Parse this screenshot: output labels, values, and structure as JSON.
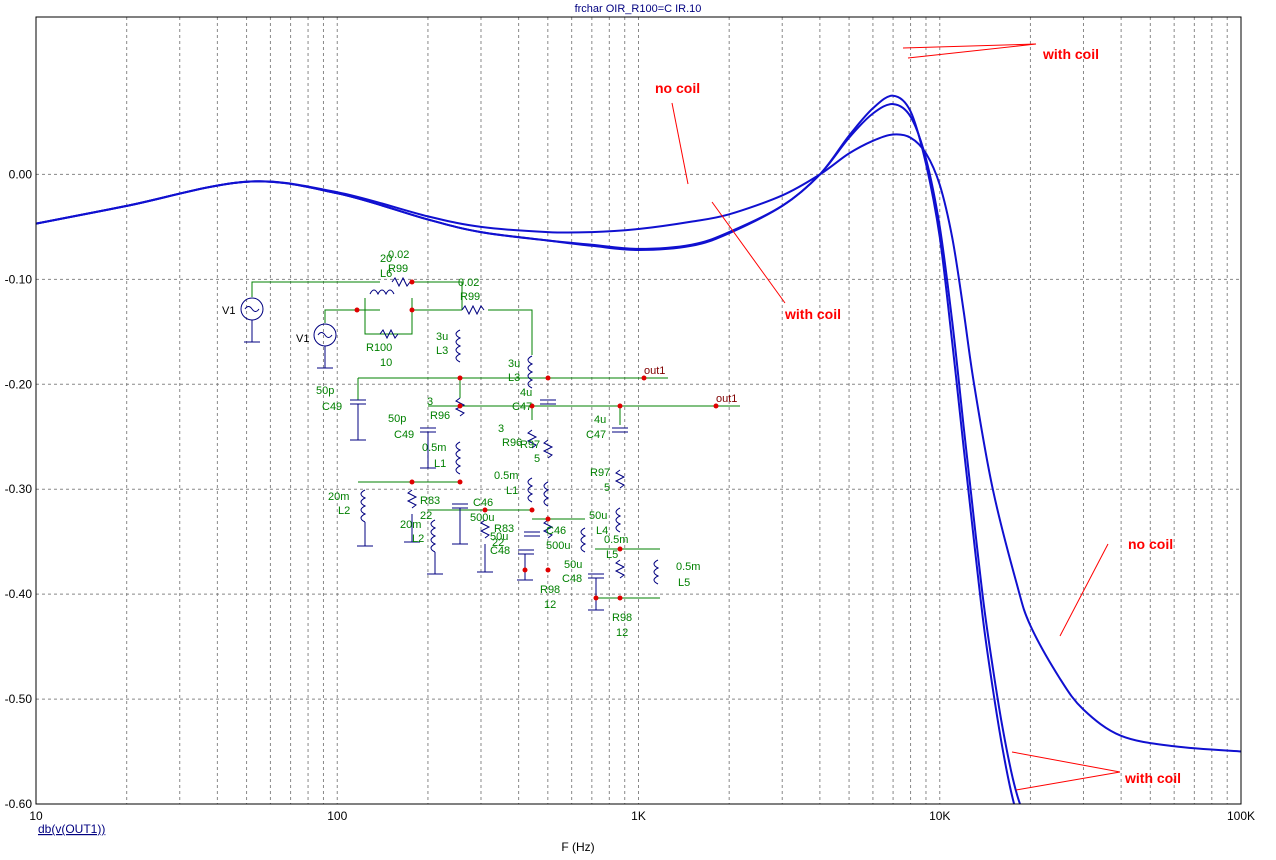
{
  "title": "frchar OIR_R100=C IR.10",
  "footer_label": "db(v(OUT1))",
  "colors": {
    "curve": "#1010d0",
    "grid": "#888888",
    "annotation": "#ff0000",
    "wire": "#008000",
    "node": "#e00000"
  },
  "annotations": {
    "with_coil_top": "with coil",
    "no_coil_top": "no coil",
    "with_coil_mid": "with coil",
    "no_coil_right": "no coil",
    "with_coil_bottom": "with coil"
  },
  "schematic": {
    "labels": [
      "V1",
      "V1",
      "20",
      "0.02",
      "R99",
      "L6",
      "0.02",
      "R99",
      "R100",
      "10",
      "3u",
      "L3",
      "3u",
      "L3",
      "out1",
      "out1",
      "50p",
      "C49",
      "50p",
      "C49",
      "3",
      "R96",
      "3",
      "R96",
      "4u",
      "C47",
      "4u",
      "C47",
      "0.5m",
      "L1",
      "0.5m",
      "L1",
      "R97",
      "5",
      "R97",
      "5",
      "20m",
      "L2",
      "R83",
      "22",
      "20m",
      "L2",
      "C46",
      "500u",
      "R83",
      "22",
      "C46",
      "500u",
      "50u",
      "C48",
      "50u",
      "C48",
      "50u",
      "L4",
      "0.5m",
      "L5",
      "0.5m",
      "L5",
      "R98",
      "12",
      "R98",
      "12"
    ]
  },
  "chart_data": {
    "type": "line",
    "xlabel": "F (Hz)",
    "ylabel": "",
    "x_scale": "log",
    "xlim": [
      10,
      100000
    ],
    "ylim": [
      -0.6,
      0.15
    ],
    "x_ticks": [
      10,
      100,
      1000,
      10000,
      100000
    ],
    "x_tick_labels": [
      "10",
      "100",
      "1K",
      "10K",
      "100K"
    ],
    "y_ticks": [
      0.0,
      -0.1,
      -0.2,
      -0.3,
      -0.4,
      -0.5,
      -0.6
    ],
    "y_tick_labels": [
      "0.00",
      "-0.10",
      "-0.20",
      "-0.30",
      "-0.40",
      "-0.50",
      "-0.60"
    ],
    "grid": true,
    "series": [
      {
        "x": [
          10,
          20,
          50,
          100,
          200,
          300,
          500,
          700,
          1000,
          1500,
          2000,
          3000,
          4000,
          5000,
          6000,
          7000,
          8000,
          9000,
          10000,
          11000,
          12000,
          13000,
          15000,
          18000,
          20000,
          25000,
          30000,
          40000,
          60000,
          100000
        ],
        "values": [
          -0.047,
          -0.03,
          -0.007,
          -0.017,
          -0.04,
          -0.05,
          -0.055,
          -0.055,
          -0.052,
          -0.045,
          -0.038,
          -0.02,
          -0.0,
          0.02,
          0.032,
          0.038,
          0.035,
          0.02,
          -0.01,
          -0.06,
          -0.13,
          -0.2,
          -0.3,
          -0.39,
          -0.43,
          -0.48,
          -0.51,
          -0.535,
          -0.545,
          -0.55
        ]
      },
      {
        "x": [
          10,
          20,
          50,
          100,
          200,
          300,
          500,
          700,
          1000,
          1500,
          2000,
          3000,
          4000,
          5000,
          6000,
          7000,
          8000,
          9000,
          10000,
          11000,
          12000,
          13000,
          14000,
          15000,
          16000,
          17000,
          18000,
          19000
        ],
        "values": [
          -0.047,
          -0.03,
          -0.007,
          -0.018,
          -0.043,
          -0.055,
          -0.063,
          -0.067,
          -0.071,
          -0.067,
          -0.055,
          -0.03,
          0.0,
          0.035,
          0.058,
          0.067,
          0.055,
          0.015,
          -0.05,
          -0.14,
          -0.24,
          -0.33,
          -0.41,
          -0.47,
          -0.52,
          -0.56,
          -0.59,
          -0.61
        ]
      },
      {
        "x": [
          10,
          20,
          50,
          100,
          200,
          300,
          500,
          700,
          1000,
          1500,
          2000,
          3000,
          4000,
          5000,
          6000,
          7000,
          8000,
          9000,
          10000,
          11000,
          12000,
          13000,
          14000,
          15000,
          16000,
          17000,
          18000
        ],
        "values": [
          -0.047,
          -0.03,
          -0.007,
          -0.018,
          -0.043,
          -0.055,
          -0.063,
          -0.068,
          -0.072,
          -0.068,
          -0.056,
          -0.03,
          0.0,
          0.037,
          0.063,
          0.075,
          0.06,
          0.01,
          -0.06,
          -0.16,
          -0.26,
          -0.35,
          -0.43,
          -0.49,
          -0.54,
          -0.58,
          -0.61
        ]
      }
    ]
  }
}
